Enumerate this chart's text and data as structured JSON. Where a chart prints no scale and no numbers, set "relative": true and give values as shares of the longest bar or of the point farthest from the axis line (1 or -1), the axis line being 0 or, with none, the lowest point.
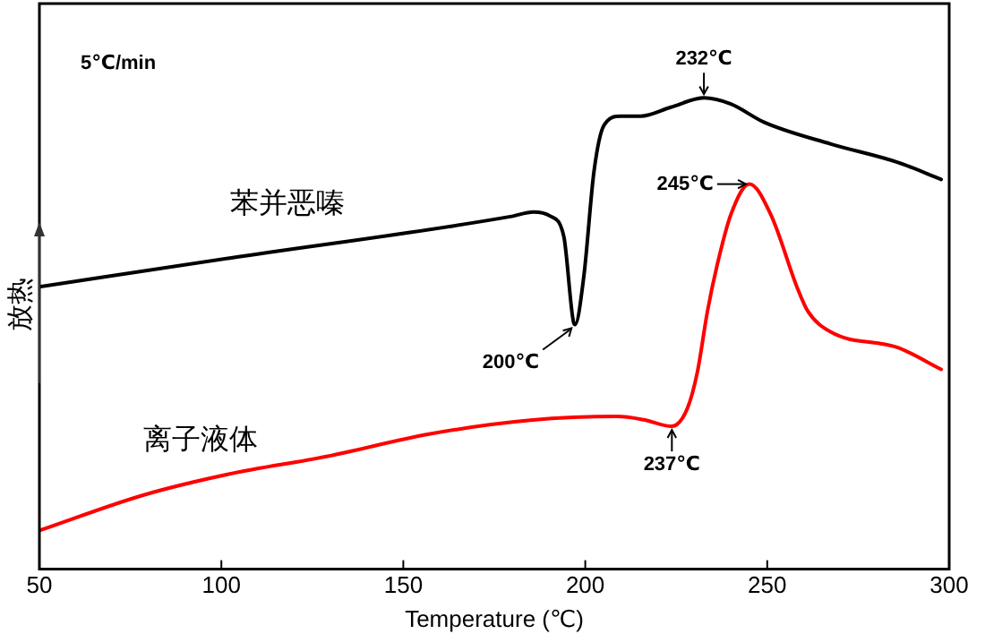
{
  "chart_data": {
    "type": "line",
    "relative": true,
    "xlabel": "Temperature (℃)",
    "ylabel": "放热",
    "xlim": [
      50,
      300
    ],
    "xticks": [
      50,
      100,
      150,
      200,
      250,
      300
    ],
    "grid": false,
    "legend": false,
    "marker": "none",
    "line_style": "solid",
    "series": [
      {
        "name": "苯并恶嗪",
        "color": "#000000",
        "x": [
          50,
          102.3,
          179.4,
          185.8,
          190.4,
          194.1,
          196.8,
          197.2,
          199.6,
          202.4,
          205.1,
          209.7,
          215.2,
          223.5,
          232.6,
          240,
          249.2,
          267.5,
          285.9,
          297.8
        ],
        "values": [
          0.599,
          0.66,
          0.748,
          0.758,
          0.749,
          0.706,
          0.523,
          0.519,
          0.621,
          0.844,
          0.941,
          0.961,
          0.961,
          0.98,
          1.0,
          0.987,
          0.948,
          0.902,
          0.863,
          0.827
        ]
      },
      {
        "name": "离子液体",
        "color": "#ff0000",
        "x": [
          50,
          78.5,
          102.3,
          128.9,
          157.4,
          184.9,
          208.8,
          216.1,
          223.8,
          228,
          230.8,
          233.6,
          236.3,
          240,
          245.1,
          251,
          258.3,
          261.1,
          267.5,
          285.9,
          297.8
        ],
        "values": [
          0.082,
          0.157,
          0.202,
          0.239,
          0.287,
          0.316,
          0.324,
          0.317,
          0.303,
          0.34,
          0.418,
          0.548,
          0.647,
          0.752,
          0.817,
          0.752,
          0.596,
          0.548,
          0.503,
          0.47,
          0.424
        ]
      }
    ],
    "annotations": [
      "5℃/min",
      {
        "text": "232℃",
        "x": 232.6,
        "y": 1.0
      },
      {
        "text": "245℃",
        "x": 245.1,
        "y": 0.817
      },
      {
        "text": "200℃",
        "x": 197.2,
        "y": 0.519
      },
      {
        "text": "237℃",
        "x": 223.8,
        "y": 0.303
      }
    ]
  }
}
